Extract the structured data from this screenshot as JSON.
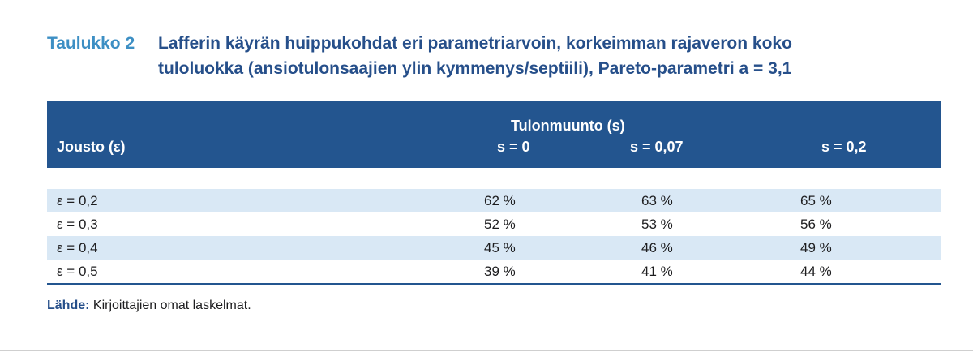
{
  "caption": {
    "label": "Taulukko 2",
    "title": "Lafferin käyrän huippukohdat eri parametriarvoin, korkeimman rajaveron koko tuloluokka (ansiotulonsaajien ylin kymmenys/septiili), Pareto-parametri a = 3,1"
  },
  "table": {
    "header": {
      "row_label": "Jousto (ε)",
      "group_label": "Tulonmuunto (s)",
      "columns": [
        "s = 0",
        "s = 0,07",
        "s = 0,2"
      ]
    },
    "rows": [
      {
        "label": "ε = 0,2",
        "values": [
          "62 %",
          "63 %",
          "65 %"
        ]
      },
      {
        "label": "ε = 0,3",
        "values": [
          "52 %",
          "53 %",
          "56 %"
        ]
      },
      {
        "label": "ε = 0,4",
        "values": [
          "45 %",
          "46 %",
          "49 %"
        ]
      },
      {
        "label": "ε = 0,5",
        "values": [
          "39 %",
          "41 %",
          "44 %"
        ]
      }
    ]
  },
  "source": {
    "label": "Lähde:",
    "text": "Kirjoittajien omat laskelmat."
  },
  "colors": {
    "header_bg": "#23558f",
    "caption_label": "#3d8fc4",
    "caption_title": "#264f8a",
    "row_shade": "#d9e8f5"
  }
}
